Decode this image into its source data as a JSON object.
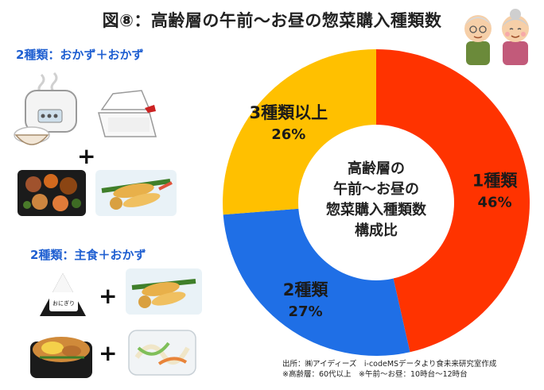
{
  "title": "図⑧：高齢層の午前〜お昼の惣菜購入種類数",
  "left_panel": {
    "section1_label": "2種類：おかず＋おかず",
    "section2_label": "2種類：主食＋おかず",
    "plus_symbol": "+",
    "rice_ball_text": "おにぎり"
  },
  "chart_data": {
    "type": "pie",
    "donut": true,
    "center_label": [
      "高齢層の",
      "午前〜お昼の",
      "惣菜購入種類数",
      "構成比"
    ],
    "categories": [
      "1種類",
      "2種類",
      "3種類以上"
    ],
    "values": [
      46,
      27,
      26
    ],
    "value_labels": [
      "46%",
      "27%",
      "26%"
    ],
    "colors": [
      "#ff3300",
      "#1f6fe6",
      "#ffc000"
    ]
  },
  "source": {
    "line1": "出所：㈱アイディーズ　i-codeMSデータより食未来研究室作成",
    "line2": "※高齢層：60代以上　※午前〜お昼：10時台〜12時台"
  }
}
